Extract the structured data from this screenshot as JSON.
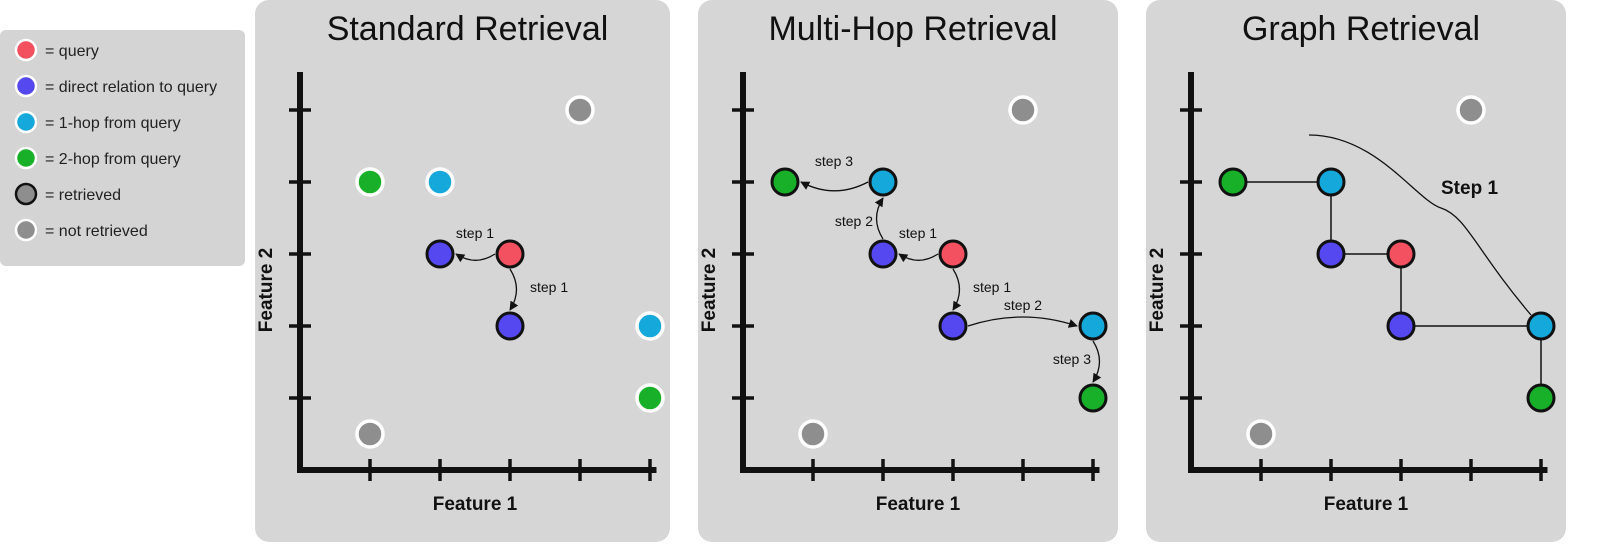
{
  "colors": {
    "query": "#f35060",
    "direct": "#5548f0",
    "hop1": "#14a8db",
    "hop2": "#18b028",
    "not_retrieved": "#8e8e8e",
    "panel_bg": "#d6d6d6"
  },
  "legend": {
    "items": [
      {
        "label": "= query",
        "color": "#f35060",
        "ring": "white"
      },
      {
        "label": "= direct relation to query",
        "color": "#5548f0",
        "ring": "white"
      },
      {
        "label": "= 1-hop from query",
        "color": "#14a8db",
        "ring": "white"
      },
      {
        "label": "= 2-hop from query",
        "color": "#18b028",
        "ring": "white"
      },
      {
        "label": "= retrieved",
        "color": "#8e8e8e",
        "ring": "black"
      },
      {
        "label": "= not retrieved",
        "color": "#8e8e8e",
        "ring": "white"
      }
    ]
  },
  "panels": [
    {
      "title": "Standard Retrieval",
      "xlabel": "Feature 1",
      "ylabel": "Feature 2",
      "nodes": [
        {
          "x": 1,
          "y": 4,
          "kind": "hop2",
          "retrieved": false
        },
        {
          "x": 2,
          "y": 4,
          "kind": "hop1",
          "retrieved": false
        },
        {
          "x": 4,
          "y": 5,
          "kind": "not_retrieved",
          "retrieved": false
        },
        {
          "x": 2,
          "y": 3,
          "kind": "direct",
          "retrieved": true
        },
        {
          "x": 3,
          "y": 3,
          "kind": "query",
          "retrieved": true
        },
        {
          "x": 3,
          "y": 2,
          "kind": "direct",
          "retrieved": true
        },
        {
          "x": 5,
          "y": 2,
          "kind": "hop1",
          "retrieved": false
        },
        {
          "x": 5,
          "y": 1,
          "kind": "hop2",
          "retrieved": false
        },
        {
          "x": 1,
          "y": 0.5,
          "kind": "not_retrieved",
          "retrieved": false
        }
      ],
      "edges": [
        {
          "from": [
            3,
            3
          ],
          "to": [
            2,
            3
          ],
          "label": "step 1",
          "style": "arrow"
        },
        {
          "from": [
            3,
            3
          ],
          "to": [
            3,
            2
          ],
          "label": "step 1",
          "style": "arrow"
        }
      ]
    },
    {
      "title": "Multi-Hop Retrieval",
      "xlabel": "Feature 1",
      "ylabel": "Feature 2",
      "nodes": [
        {
          "x": 0.6,
          "y": 4,
          "kind": "hop2",
          "retrieved": true
        },
        {
          "x": 2,
          "y": 4,
          "kind": "hop1",
          "retrieved": true
        },
        {
          "x": 4,
          "y": 5,
          "kind": "not_retrieved",
          "retrieved": false
        },
        {
          "x": 2,
          "y": 3,
          "kind": "direct",
          "retrieved": true
        },
        {
          "x": 3,
          "y": 3,
          "kind": "query",
          "retrieved": true
        },
        {
          "x": 3,
          "y": 2,
          "kind": "direct",
          "retrieved": true
        },
        {
          "x": 5,
          "y": 2,
          "kind": "hop1",
          "retrieved": true
        },
        {
          "x": 5,
          "y": 1,
          "kind": "hop2",
          "retrieved": true
        },
        {
          "x": 1,
          "y": 0.5,
          "kind": "not_retrieved",
          "retrieved": false
        }
      ],
      "edges": [
        {
          "from": [
            3,
            3
          ],
          "to": [
            2,
            3
          ],
          "label": "step 1",
          "style": "arrow"
        },
        {
          "from": [
            3,
            3
          ],
          "to": [
            3,
            2
          ],
          "label": "step 1",
          "style": "arrow"
        },
        {
          "from": [
            2,
            3
          ],
          "to": [
            2,
            4
          ],
          "label": "step 2",
          "style": "arrow"
        },
        {
          "from": [
            3,
            2
          ],
          "to": [
            5,
            2
          ],
          "label": "step 2",
          "style": "arrow"
        },
        {
          "from": [
            2,
            4
          ],
          "to": [
            0.6,
            4
          ],
          "label": "step 3",
          "style": "arrow"
        },
        {
          "from": [
            5,
            2
          ],
          "to": [
            5,
            1
          ],
          "label": "step 3",
          "style": "arrow"
        }
      ]
    },
    {
      "title": "Graph Retrieval",
      "xlabel": "Feature 1",
      "ylabel": "Feature 2",
      "annotation": "Step 1",
      "nodes": [
        {
          "x": 0.6,
          "y": 4,
          "kind": "hop2",
          "retrieved": true
        },
        {
          "x": 2,
          "y": 4,
          "kind": "hop1",
          "retrieved": true
        },
        {
          "x": 4,
          "y": 5,
          "kind": "not_retrieved",
          "retrieved": false
        },
        {
          "x": 2,
          "y": 3,
          "kind": "direct",
          "retrieved": true
        },
        {
          "x": 3,
          "y": 3,
          "kind": "query",
          "retrieved": true
        },
        {
          "x": 3,
          "y": 2,
          "kind": "direct",
          "retrieved": true
        },
        {
          "x": 5,
          "y": 2,
          "kind": "hop1",
          "retrieved": true
        },
        {
          "x": 5,
          "y": 1,
          "kind": "hop2",
          "retrieved": true
        },
        {
          "x": 1,
          "y": 0.5,
          "kind": "not_retrieved",
          "retrieved": false
        }
      ],
      "edges": [
        {
          "from": [
            0.6,
            4
          ],
          "to": [
            2,
            4
          ],
          "style": "line"
        },
        {
          "from": [
            2,
            4
          ],
          "to": [
            2,
            3
          ],
          "style": "line"
        },
        {
          "from": [
            2,
            3
          ],
          "to": [
            3,
            3
          ],
          "style": "line"
        },
        {
          "from": [
            3,
            3
          ],
          "to": [
            3,
            2
          ],
          "style": "line"
        },
        {
          "from": [
            3,
            2
          ],
          "to": [
            5,
            2
          ],
          "style": "line"
        },
        {
          "from": [
            5,
            2
          ],
          "to": [
            5,
            1
          ],
          "style": "line"
        }
      ]
    }
  ]
}
